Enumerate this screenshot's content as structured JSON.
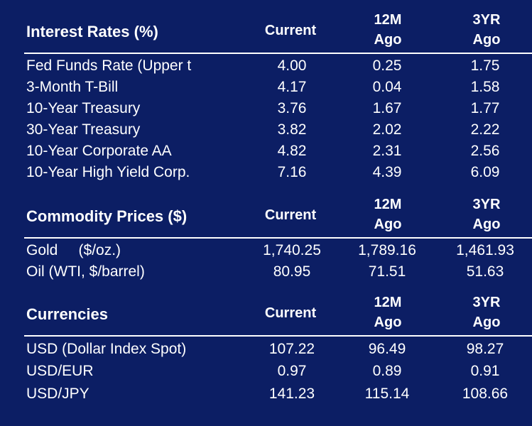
{
  "sections": [
    {
      "title": "Interest Rates (%)",
      "col_current": "Current",
      "col_12m": "12M\nAgo",
      "col_3yr": "3YR\nAgo",
      "rows": [
        {
          "label": "Fed Funds Rate (Upper t",
          "current": "4.00",
          "m12": "0.25",
          "yr3": "1.75"
        },
        {
          "label": "3-Month T-Bill",
          "current": "4.17",
          "m12": "0.04",
          "yr3": "1.58"
        },
        {
          "label": "10-Year Treasury",
          "current": "3.76",
          "m12": "1.67",
          "yr3": "1.77"
        },
        {
          "label": "30-Year Treasury",
          "current": "3.82",
          "m12": "2.02",
          "yr3": "2.22"
        },
        {
          "label": "10-Year Corporate AA",
          "current": "4.82",
          "m12": "2.31",
          "yr3": "2.56"
        },
        {
          "label": "10-Year High Yield Corp.",
          "current": "7.16",
          "m12": "4.39",
          "yr3": "6.09"
        }
      ]
    },
    {
      "title": "Commodity Prices ($)",
      "col_current": "Current",
      "col_12m": "12M\nAgo",
      "col_3yr": "3YR\nAgo",
      "rows": [
        {
          "label": "Gold     ($/oz.)",
          "current": "1,740.25",
          "m12": "1,789.16",
          "yr3": "1,461.93"
        },
        {
          "label": "Oil (WTI, $/barrel)",
          "current": "80.95",
          "m12": "71.51",
          "yr3": "51.63"
        }
      ]
    },
    {
      "title": "Currencies",
      "col_current": "Current",
      "col_12m": "12M\nAgo",
      "col_3yr": "3YR\nAgo",
      "rows": [
        {
          "label": "USD (Dollar Index Spot)",
          "current": "107.22",
          "m12": "96.49",
          "yr3": "98.27"
        },
        {
          "label": "USD/EUR",
          "current": "0.97",
          "m12": "0.89",
          "yr3": "0.91"
        },
        {
          "label": "USD/JPY",
          "current": "141.23",
          "m12": "115.14",
          "yr3": "108.66"
        }
      ]
    }
  ],
  "colors": {
    "background": "#0c1e64",
    "text": "#ffffff"
  }
}
